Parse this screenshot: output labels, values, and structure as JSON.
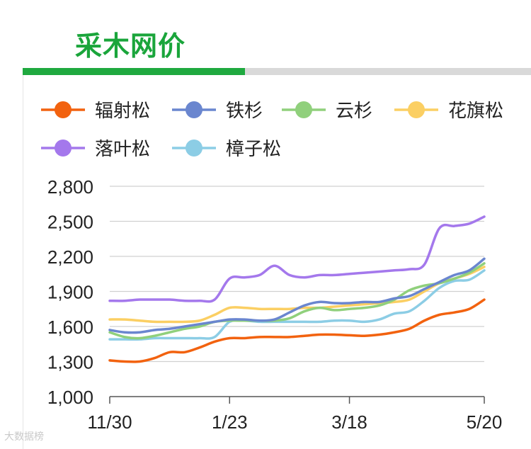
{
  "page": {
    "title": "采木网价",
    "watermark": "大数据榜"
  },
  "colors": {
    "accent": "#1aa53b",
    "divider_active": "#1fa93f",
    "divider_inactive": "#d9d9d9"
  },
  "chart_data": {
    "type": "line",
    "title": "",
    "xlabel": "",
    "ylabel": "",
    "ylim": [
      1000,
      2800
    ],
    "yticks": [
      1000,
      1300,
      1600,
      1900,
      2200,
      2500,
      2800
    ],
    "ytick_labels": [
      "1,000",
      "1,300",
      "1,600",
      "1,900",
      "2,200",
      "2,500",
      "2,800"
    ],
    "xticks": [
      "11/30",
      "1/23",
      "3/18",
      "5/20"
    ],
    "x": [
      "11/30",
      "12/07",
      "12/14",
      "12/21",
      "12/28",
      "01/04",
      "01/11",
      "01/18",
      "01/23",
      "01/30",
      "02/06",
      "02/13",
      "02/20",
      "02/27",
      "03/04",
      "03/11",
      "03/18",
      "03/25",
      "04/01",
      "04/08",
      "04/15",
      "04/22",
      "04/29",
      "05/06",
      "05/13",
      "05/20"
    ],
    "grid": true,
    "legend": "top",
    "series": [
      {
        "name": "辐射松",
        "color": "#f2620f",
        "values": [
          1310,
          1300,
          1300,
          1330,
          1380,
          1380,
          1420,
          1470,
          1500,
          1500,
          1510,
          1510,
          1510,
          1520,
          1530,
          1530,
          1525,
          1520,
          1530,
          1550,
          1580,
          1650,
          1700,
          1720,
          1750,
          1830
        ]
      },
      {
        "name": "铁杉",
        "color": "#6a86cf",
        "values": [
          1570,
          1550,
          1550,
          1570,
          1580,
          1600,
          1620,
          1640,
          1660,
          1660,
          1650,
          1660,
          1720,
          1780,
          1810,
          1800,
          1800,
          1810,
          1810,
          1840,
          1860,
          1920,
          1980,
          2040,
          2080,
          2180
        ]
      },
      {
        "name": "云杉",
        "color": "#90d07c",
        "values": [
          1550,
          1510,
          1500,
          1520,
          1550,
          1580,
          1600,
          1640,
          1650,
          1650,
          1650,
          1650,
          1670,
          1730,
          1760,
          1740,
          1750,
          1760,
          1780,
          1830,
          1910,
          1950,
          1970,
          2010,
          2060,
          2140
        ]
      },
      {
        "name": "花旗松",
        "color": "#fbcf63",
        "values": [
          1660,
          1660,
          1650,
          1640,
          1640,
          1640,
          1650,
          1700,
          1760,
          1760,
          1750,
          1750,
          1750,
          1760,
          1760,
          1770,
          1780,
          1790,
          1800,
          1810,
          1830,
          1900,
          1970,
          2010,
          2050,
          2110
        ]
      },
      {
        "name": "落叶松",
        "color": "#a478ec",
        "values": [
          1820,
          1820,
          1830,
          1830,
          1830,
          1820,
          1820,
          1830,
          2010,
          2020,
          2040,
          2120,
          2040,
          2020,
          2040,
          2040,
          2050,
          2060,
          2070,
          2080,
          2090,
          2130,
          2440,
          2460,
          2480,
          2540
        ]
      },
      {
        "name": "樟子松",
        "color": "#8ccde5",
        "values": [
          1490,
          1490,
          1490,
          1500,
          1500,
          1500,
          1500,
          1510,
          1640,
          1650,
          1640,
          1640,
          1640,
          1640,
          1640,
          1650,
          1650,
          1640,
          1660,
          1710,
          1730,
          1820,
          1930,
          1990,
          2000,
          2080
        ]
      }
    ]
  }
}
